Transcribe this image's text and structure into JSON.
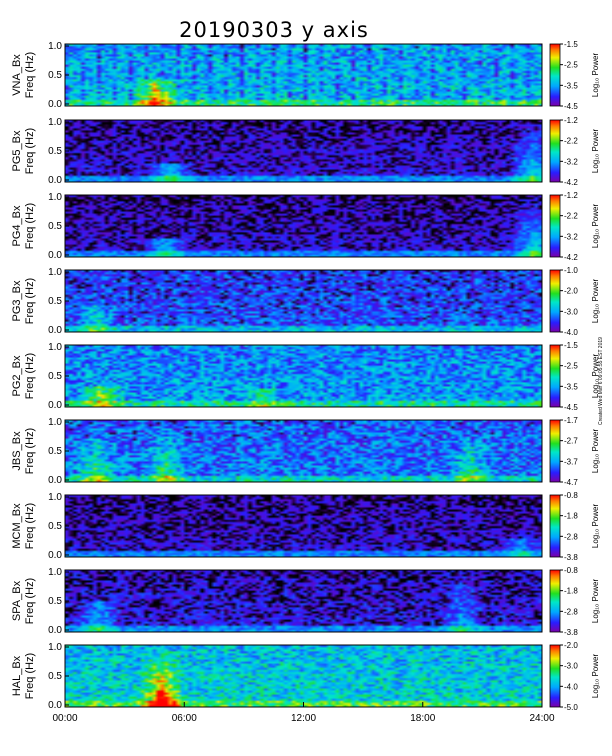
{
  "title": "20190303  y axis",
  "side_note": "Created Wed Mar 6 09:05:55 EST 2019",
  "chart_data": {
    "type": "heatmap",
    "x": {
      "ticks": [
        "00:00",
        "06:00",
        "12:00",
        "18:00",
        "24:00"
      ],
      "range_hours": [
        0,
        24
      ]
    },
    "y_ticks": [
      "0.0",
      "0.5",
      "1.0"
    ],
    "y_range_hz": [
      0,
      1.0
    ],
    "colorbar_label": "Log₁₀ Power",
    "panels": [
      {
        "station": "VNA_Bx",
        "ylabel_line1": "VNA_Bx",
        "ylabel_line2": "Freq (Hz)",
        "cbar_ticks": [
          "-1.5",
          "-2.5",
          "-3.5",
          "-4.5"
        ],
        "cbar_range": [
          -4.5,
          -1.5
        ]
      },
      {
        "station": "PG5_Bx",
        "ylabel_line1": "PG5_Bx",
        "ylabel_line2": "Freq (Hz)",
        "cbar_ticks": [
          "-1.2",
          "-2.2",
          "-3.2",
          "-4.2"
        ],
        "cbar_range": [
          -4.2,
          -1.2
        ]
      },
      {
        "station": "PG4_Bx",
        "ylabel_line1": "PG4_Bx",
        "ylabel_line2": "Freq (Hz)",
        "cbar_ticks": [
          "-1.2",
          "-2.2",
          "-3.2",
          "-4.2"
        ],
        "cbar_range": [
          -4.2,
          -1.2
        ]
      },
      {
        "station": "PG3_Bx",
        "ylabel_line1": "PG3_Bx",
        "ylabel_line2": "Freq (Hz)",
        "cbar_ticks": [
          "-1.0",
          "-2.0",
          "-3.0",
          "-4.0"
        ],
        "cbar_range": [
          -4.0,
          -1.0
        ]
      },
      {
        "station": "PG2_Bx",
        "ylabel_line1": "PG2_Bx",
        "ylabel_line2": "Freq (Hz)",
        "cbar_ticks": [
          "-1.5",
          "-2.5",
          "-3.5",
          "-4.5"
        ],
        "cbar_range": [
          -4.5,
          -1.5
        ]
      },
      {
        "station": "JBS_Bx",
        "ylabel_line1": "JBS_Bx",
        "ylabel_line2": "Freq (Hz)",
        "cbar_ticks": [
          "-1.7",
          "-2.7",
          "-3.7",
          "-4.7"
        ],
        "cbar_range": [
          -4.7,
          -1.7
        ]
      },
      {
        "station": "MCM_Bx",
        "ylabel_line1": "MCM_Bx",
        "ylabel_line2": "Freq (Hz)",
        "cbar_ticks": [
          "-0.8",
          "-1.8",
          "-2.8",
          "-3.8"
        ],
        "cbar_range": [
          -3.8,
          -0.8
        ]
      },
      {
        "station": "SPA_Bx",
        "ylabel_line1": "SPA_Bx",
        "ylabel_line2": "Freq (Hz)",
        "cbar_ticks": [
          "-0.8",
          "-1.8",
          "-2.8",
          "-3.8"
        ],
        "cbar_range": [
          -3.8,
          -0.8
        ]
      },
      {
        "station": "HAL_Bx",
        "ylabel_line1": "HAL_Bx",
        "ylabel_line2": "Freq (Hz)",
        "cbar_ticks": [
          "-2.0",
          "-3.0",
          "-4.0",
          "-5.0"
        ],
        "cbar_range": [
          -5.0,
          -2.0
        ]
      }
    ]
  }
}
